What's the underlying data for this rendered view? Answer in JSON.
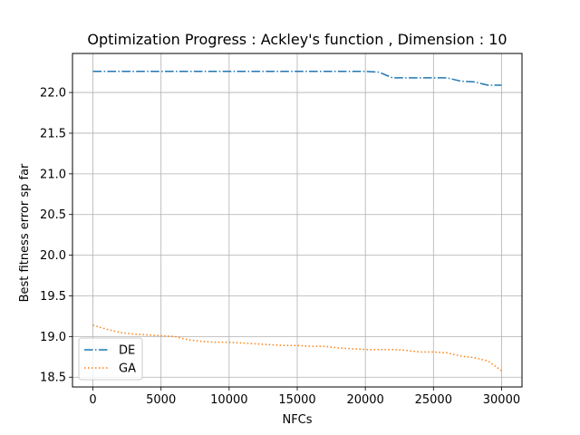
{
  "chart_data": {
    "type": "line",
    "title": "Optimization Progress : Ackley's function , Dimension : 10",
    "xlabel": "NFCs",
    "ylabel": "Best fitness error sp far",
    "xlim": [
      -1500,
      31500
    ],
    "ylim": [
      18.38,
      22.48
    ],
    "xticks": [
      0,
      5000,
      10000,
      15000,
      20000,
      25000,
      30000
    ],
    "yticks": [
      18.5,
      19.0,
      19.5,
      20.0,
      20.5,
      21.0,
      21.5,
      22.0
    ],
    "grid": true,
    "legend_position": "lower-left",
    "series": [
      {
        "name": "DE",
        "color": "#1f77b4",
        "linestyle": "dashdot",
        "x": [
          0,
          1000,
          2000,
          3000,
          4000,
          5000,
          6000,
          7000,
          8000,
          9000,
          10000,
          11000,
          12000,
          13000,
          14000,
          15000,
          16000,
          17000,
          18000,
          19000,
          20000,
          21000,
          22000,
          23000,
          24000,
          25000,
          26000,
          27000,
          28000,
          29000,
          30000
        ],
        "values": [
          22.26,
          22.26,
          22.26,
          22.26,
          22.26,
          22.26,
          22.26,
          22.26,
          22.26,
          22.26,
          22.26,
          22.26,
          22.26,
          22.26,
          22.26,
          22.26,
          22.26,
          22.26,
          22.26,
          22.26,
          22.26,
          22.25,
          22.18,
          22.18,
          22.18,
          22.18,
          22.18,
          22.14,
          22.13,
          22.09,
          22.09
        ]
      },
      {
        "name": "GA",
        "color": "#ff7f0e",
        "linestyle": "dotted",
        "x": [
          0,
          1000,
          2000,
          3000,
          4000,
          5000,
          6000,
          7000,
          8000,
          9000,
          10000,
          11000,
          12000,
          13000,
          14000,
          15000,
          16000,
          17000,
          18000,
          19000,
          20000,
          21000,
          22000,
          23000,
          24000,
          25000,
          26000,
          27000,
          28000,
          29000,
          30000
        ],
        "values": [
          19.14,
          19.09,
          19.05,
          19.03,
          19.02,
          19.01,
          19.0,
          18.96,
          18.94,
          18.93,
          18.93,
          18.92,
          18.91,
          18.9,
          18.89,
          18.89,
          18.88,
          18.88,
          18.86,
          18.85,
          18.84,
          18.84,
          18.84,
          18.83,
          18.81,
          18.81,
          18.8,
          18.76,
          18.74,
          18.7,
          18.58
        ]
      }
    ]
  }
}
